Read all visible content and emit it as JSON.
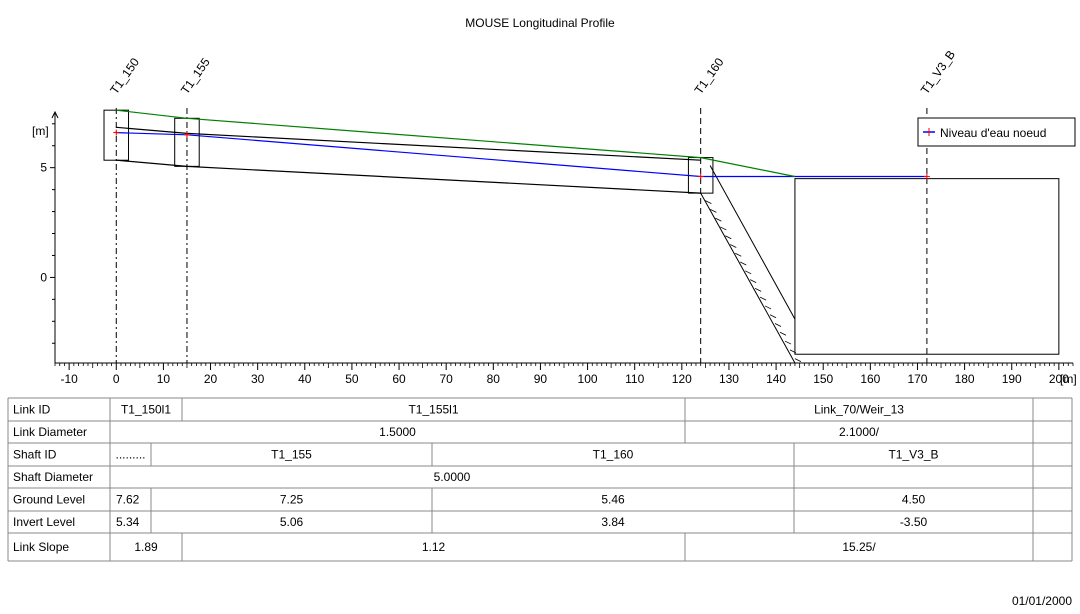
{
  "chart_data": {
    "type": "line",
    "title": "MOUSE Longitudinal Profile",
    "ylabel": "[m]",
    "xlabel": "[m]",
    "xlim": [
      -13,
      203
    ],
    "ylim": [
      -3.9,
      7.4
    ],
    "x_ticks": [
      -10,
      0,
      10,
      20,
      30,
      40,
      50,
      60,
      70,
      80,
      90,
      100,
      110,
      120,
      130,
      140,
      150,
      160,
      170,
      180,
      190,
      200
    ],
    "y_ticks": [
      0,
      5
    ],
    "legend": {
      "position": "top-right",
      "entries": [
        "Niveau d'eau noeud"
      ]
    },
    "nodes": [
      {
        "id": "T1_150",
        "x": 0,
        "ground": 7.62,
        "invert": 5.34
      },
      {
        "id": "T1_155",
        "x": 15,
        "ground": 7.25,
        "invert": 5.06
      },
      {
        "id": "T1_160",
        "x": 124,
        "ground": 5.46,
        "invert": 3.84
      },
      {
        "id": "T1_V3_B",
        "x": 172,
        "ground": 4.5,
        "invert": -3.5
      }
    ],
    "series": [
      {
        "name": "Niveau d'eau noeud",
        "color": "#0000ff",
        "x": [
          0,
          15,
          124,
          144,
          172
        ],
        "y": [
          6.6,
          6.5,
          4.6,
          4.6,
          4.6
        ]
      },
      {
        "color": "#008000",
        "x": [
          0,
          15,
          124,
          144
        ],
        "y": [
          7.62,
          7.25,
          5.46,
          4.6
        ]
      },
      {
        "color": "#000000",
        "x": [
          0,
          15,
          124
        ],
        "y": [
          6.84,
          6.56,
          5.34
        ]
      },
      {
        "color": "#000000",
        "x": [
          0,
          15,
          124
        ],
        "y": [
          5.34,
          5.06,
          3.84
        ]
      }
    ],
    "grid": false
  },
  "table": {
    "rows": [
      {
        "label": "Link ID",
        "cells": [
          "T1_150l1",
          "T1_155l1",
          "Link_70/Weir_13"
        ]
      },
      {
        "label": "Link Diameter",
        "cells": [
          "1.5000",
          "2.1000/"
        ]
      },
      {
        "label": "Shaft ID",
        "cells": [
          ".........",
          "T1_155",
          "T1_160",
          "T1_V3_B"
        ]
      },
      {
        "label": "Shaft Diameter",
        "cells": [
          "5.0000"
        ]
      },
      {
        "label": "Ground Level",
        "cells": [
          "7.62",
          "7.25",
          "5.46",
          "4.50"
        ]
      },
      {
        "label": "Invert Level",
        "cells": [
          "5.34",
          "5.06",
          "3.84",
          "-3.50"
        ]
      },
      {
        "label": "Link Slope",
        "cells": [
          "1.89",
          "1.12",
          "15.25/"
        ]
      }
    ]
  },
  "footer": {
    "date": "01/01/2000"
  }
}
